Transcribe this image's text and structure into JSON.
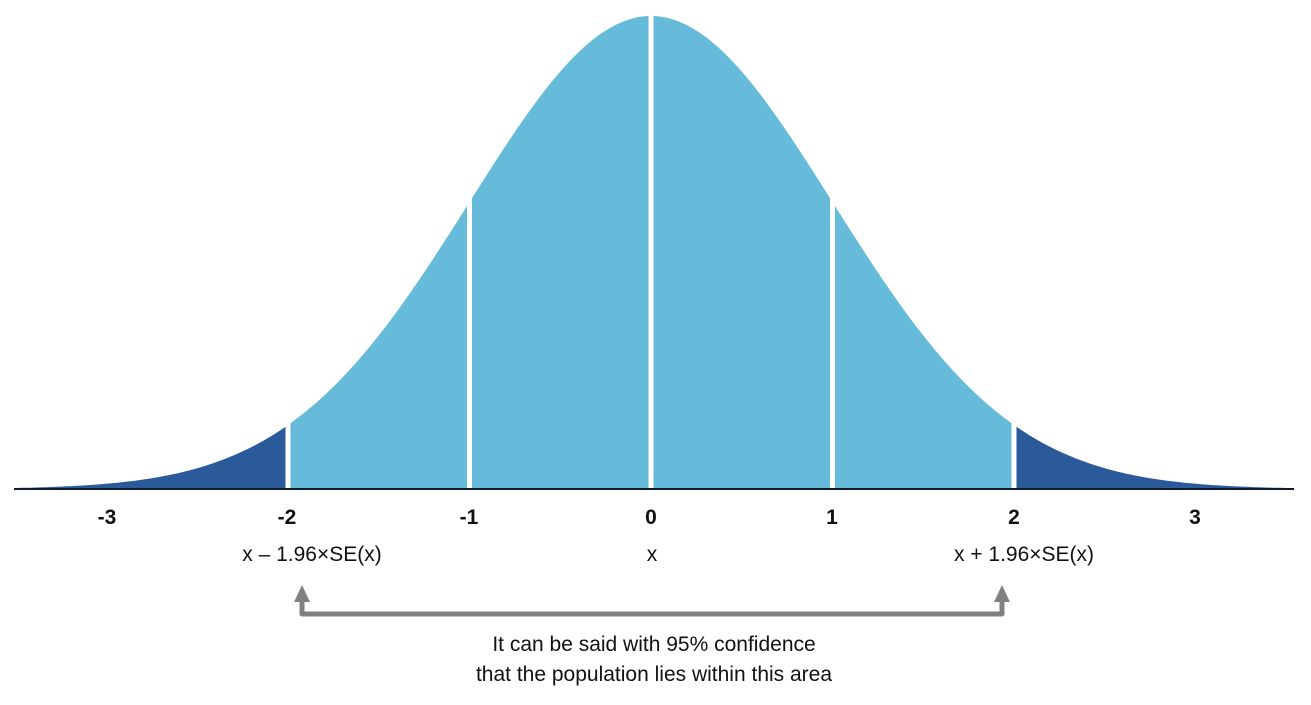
{
  "chart_data": {
    "type": "area",
    "title": "",
    "xlabel": "",
    "ylabel": "",
    "distribution": "standard normal",
    "mean": 0,
    "sd": 1,
    "xlim": [
      -3.5,
      3.5
    ],
    "grid": false,
    "legend": null,
    "x_ticks": [
      "-3",
      "-2",
      "-1",
      "0",
      "1",
      "2",
      "3"
    ],
    "x_tick_values": [
      -3,
      -2,
      -1,
      0,
      1,
      2,
      3
    ],
    "regions": [
      {
        "name": "left-tail",
        "from": -3.5,
        "to": -2,
        "color": "#2A5A9A"
      },
      {
        "name": "minus2-to-minus1",
        "from": -2,
        "to": -1,
        "color": "#66BBDA"
      },
      {
        "name": "minus1-to-0",
        "from": -1,
        "to": 0,
        "color": "#66BBDA"
      },
      {
        "name": "0-to-1",
        "from": 0,
        "to": 1,
        "color": "#66BBDA"
      },
      {
        "name": "1-to-2",
        "from": 1,
        "to": 2,
        "color": "#66BBDA"
      },
      {
        "name": "right-tail",
        "from": 2,
        "to": 3.5,
        "color": "#2A5A9A"
      }
    ],
    "dividers_at": [
      -2,
      -1,
      0,
      1,
      2
    ],
    "annotations": {
      "lower_bound": "x – 1.96×SE(x)",
      "center": "x",
      "upper_bound": "x + 1.96×SE(x)",
      "bracket_note": "It can be said with 95% confidence that the population lies within this area"
    }
  },
  "ticks": [
    "-3",
    "-2",
    "-1",
    "0",
    "1",
    "2",
    "3"
  ],
  "sublabels": {
    "lower": "x – 1.96×SE(x)",
    "center": "x",
    "upper": "x + 1.96×SE(x)"
  },
  "caption": {
    "line1": "It can be said with 95% confidence",
    "line2": "that the population lies within this area"
  },
  "colors": {
    "light_blue": "#66BBDA",
    "dark_blue": "#2A5A9A",
    "baseline": "#0d1b2a",
    "arrow": "#808080"
  }
}
